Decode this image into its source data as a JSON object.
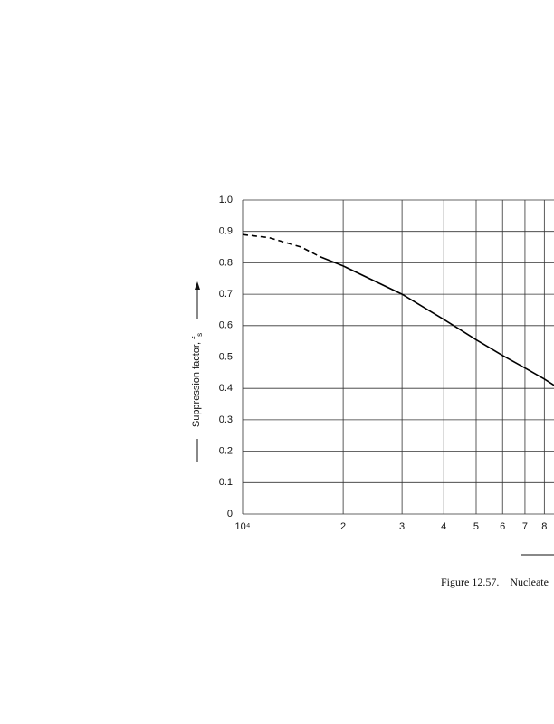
{
  "chart_data": {
    "type": "line",
    "y_label": "Suppression factor, f",
    "y_label_subscript": "s",
    "caption": "Figure 12.57.    Nucleate",
    "xscale": "log",
    "x": [
      10000,
      12000,
      15000,
      17000,
      20000,
      30000,
      40000,
      50000,
      60000,
      70000,
      80000,
      85500
    ],
    "series": [
      {
        "color": "#000000",
        "dash": true,
        "values": [
          0.89,
          0.88,
          0.85,
          0.82,
          null,
          null,
          null,
          null,
          null,
          null,
          null,
          null
        ]
      },
      {
        "color": "#000000",
        "dash": false,
        "values": [
          null,
          null,
          null,
          0.82,
          0.79,
          0.7,
          0.62,
          0.555,
          0.505,
          0.465,
          0.43,
          0.41
        ]
      }
    ],
    "xlim": [
      10000,
      85500
    ],
    "xticks": [
      {
        "value": 10000,
        "label": "10⁴"
      },
      {
        "value": 20000,
        "label": "2"
      },
      {
        "value": 30000,
        "label": "3"
      },
      {
        "value": 40000,
        "label": "4"
      },
      {
        "value": 50000,
        "label": "5"
      },
      {
        "value": 60000,
        "label": "6"
      },
      {
        "value": 70000,
        "label": "7"
      },
      {
        "value": 80000,
        "label": "8"
      }
    ],
    "ylim": [
      0,
      1
    ],
    "yticks": [
      0,
      0.1,
      0.2,
      0.3,
      0.4,
      0.5,
      0.6,
      0.7,
      0.8,
      0.9,
      {
        "value": 1,
        "label": "1.0"
      }
    ],
    "grid": true
  }
}
